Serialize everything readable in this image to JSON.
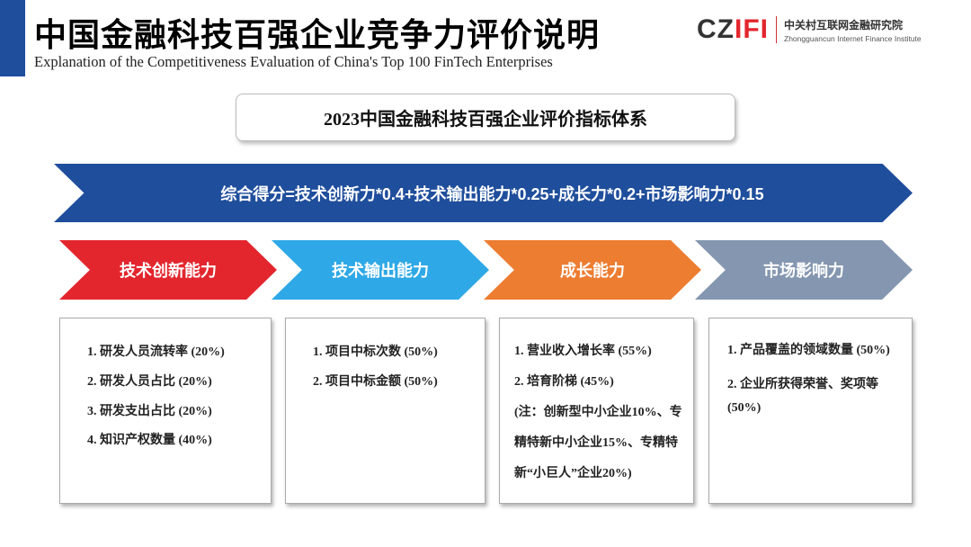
{
  "header": {
    "title": "中国金融科技百强企业竞争力评价说明",
    "subtitle": "Explanation of the Competitiveness Evaluation of China's Top 100 FinTech Enterprises",
    "logo": {
      "mark_left": "CZ",
      "mark_right": "IFI",
      "name_cn": "中关村互联网金融研究院",
      "name_en": "Zhongguancun Internet Finance Institute"
    },
    "accent": "#1f4e9c"
  },
  "system_title": "2023中国金融科技百强企业评价指标体系",
  "formula": "综合得分=技术创新力*0.4+技术输出能力*0.25+成长力*0.2+市场影响力*0.15",
  "categories": [
    {
      "label": "技术创新能力",
      "color": "#e3262e",
      "items": [
        "1. 研发人员流转率 (20%)",
        "2. 研发人员占比 (20%)",
        "3. 研发支出占比 (20%)",
        "4. 知识产权数量 (40%)"
      ]
    },
    {
      "label": "技术输出能力",
      "color": "#2ea8e6",
      "items": [
        "1. 项目中标次数 (50%)",
        "2. 项目中标金额 (50%)"
      ]
    },
    {
      "label": "成长能力",
      "color": "#ed7d31",
      "items": [
        "1. 营业收入增长率 (55%)",
        "2. 培育阶梯 (45%)",
        "(注：创新型中小企业10%、专精特新中小企业15%、专精特新“小巨人”企业20%)"
      ]
    },
    {
      "label": "市场影响力",
      "color": "#8496b0",
      "items": [
        "1. 产品覆盖的领域数量 (50%)",
        "2. 企业所获得荣誉、奖项等 (50%)"
      ]
    }
  ]
}
